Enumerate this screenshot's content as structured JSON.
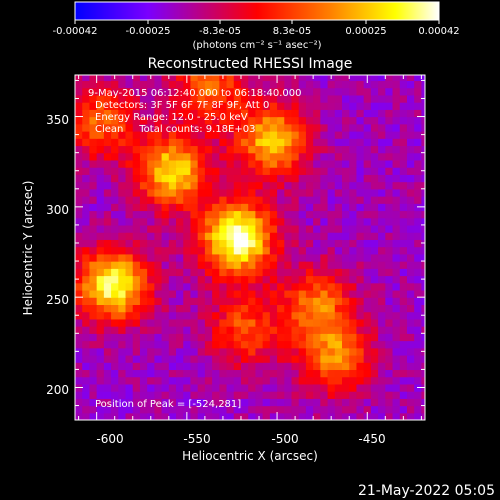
{
  "chart_data": {
    "type": "heatmap",
    "title": "Reconstructed RHESSI Image",
    "colorbar": {
      "range": [
        -0.00042,
        0.00042
      ],
      "ticks": [
        "-0.00042",
        "-0.00025",
        "-8.3e-05",
        "8.3e-05",
        "0.00025",
        "0.00042"
      ],
      "units_label": "(photons cm⁻² s⁻¹ asec⁻²)",
      "colormap": [
        "#0000ff",
        "#7a00ff",
        "#ff0000",
        "#ff7f00",
        "#ffff00",
        "#ffffff"
      ]
    },
    "xlabel": "Heliocentric X (arcsec)",
    "ylabel": "Heliocentric Y (arcsec)",
    "xlim": [
      -612,
      -418
    ],
    "ylim": [
      182,
      373
    ],
    "x_ticks": [
      "-600",
      "-550",
      "-500",
      "-450"
    ],
    "y_ticks": [
      "350",
      "300",
      "250",
      "200"
    ],
    "annotations": [
      "9-May-2015 06:12:40.000 to 06:18:40.000",
      "Detectors: 3F 5F 6F 7F 8F 9F, Att 0",
      "Energy Range: 12.0 - 25.0 keV",
      "Clean     Total counts: 9.18E+03"
    ],
    "peak_text": "Position of Peak = [-524,281]",
    "peak": [
      -524,
      281
    ],
    "bright_regions": [
      {
        "x": -524,
        "y": 281,
        "value": 0.00042
      },
      {
        "x": -593,
        "y": 255,
        "value": 0.00035
      },
      {
        "x": -560,
        "y": 318,
        "value": 0.00028
      },
      {
        "x": -505,
        "y": 335,
        "value": 0.00024
      },
      {
        "x": -470,
        "y": 215,
        "value": 0.00015
      },
      {
        "x": -480,
        "y": 245,
        "value": 0.00012
      },
      {
        "x": -600,
        "y": 345,
        "value": 0.0001
      },
      {
        "x": -540,
        "y": 365,
        "value": 0.00012
      },
      {
        "x": -520,
        "y": 230,
        "value": 8e-05
      }
    ]
  },
  "footer": {
    "timestamp": "21-May-2022 05:05"
  }
}
